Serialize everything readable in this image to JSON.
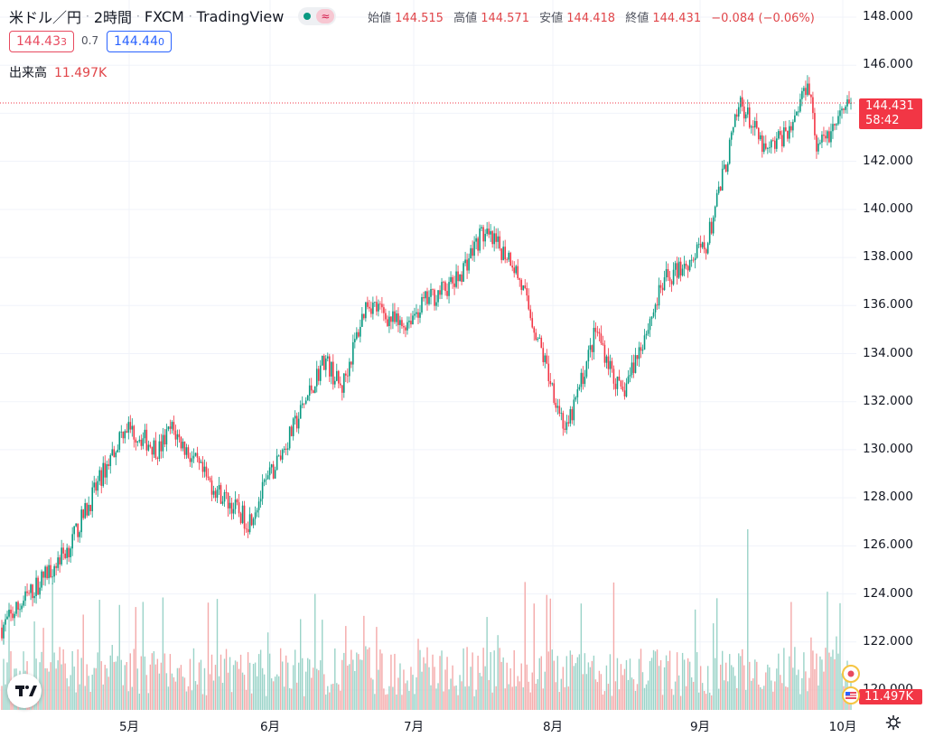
{
  "header": {
    "symbol": "米ドル／円",
    "interval": "2時間",
    "broker": "FXCM",
    "platform": "TradingView",
    "sep": "·",
    "market_icon": "≈"
  },
  "ohlc": {
    "open_label": "始値",
    "open": "144.515",
    "high_label": "高値",
    "high": "144.571",
    "low_label": "安値",
    "low": "144.418",
    "close_label": "終値",
    "close": "144.431",
    "change": "−0.084 (−0.06%)"
  },
  "trade": {
    "sell_main": "144.43",
    "sell_small": "3",
    "spread": "0.7",
    "buy_main": "144.44",
    "buy_small": "0"
  },
  "volume": {
    "label": "出来高",
    "value": "11.497K"
  },
  "price_label": {
    "price": "144.431",
    "countdown": "58:42"
  },
  "volume_label": "11.497K",
  "colors": {
    "up": "#089981",
    "down": "#f23645",
    "vol_up": "#9ad3c8",
    "vol_down": "#f4a9a9",
    "grid": "#f0f3fa"
  },
  "chart_data": {
    "type": "candlestick",
    "title": "米ドル／円",
    "y_ticks": [
      "148.000",
      "146.000",
      "144.000",
      "142.000",
      "140.000",
      "138.000",
      "136.000",
      "134.000",
      "132.000",
      "130.000",
      "128.000",
      "126.000",
      "124.000",
      "122.000",
      "120.000"
    ],
    "x_ticks": [
      "5月",
      "6月",
      "7月",
      "8月",
      "9月",
      "10月"
    ],
    "ylim": [
      120.0,
      148.0
    ],
    "grid": true,
    "last_price": 144.431,
    "price_path": [
      {
        "t": 0,
        "p": 122.6
      },
      {
        "t": 0.08,
        "p": 126.0
      },
      {
        "t": 0.115,
        "p": 128.7
      },
      {
        "t": 0.145,
        "p": 131.0
      },
      {
        "t": 0.185,
        "p": 130.0
      },
      {
        "t": 0.2,
        "p": 130.9
      },
      {
        "t": 0.24,
        "p": 128.8
      },
      {
        "t": 0.29,
        "p": 127.0
      },
      {
        "t": 0.345,
        "p": 131.0
      },
      {
        "t": 0.38,
        "p": 133.8
      },
      {
        "t": 0.4,
        "p": 132.5
      },
      {
        "t": 0.43,
        "p": 136.2
      },
      {
        "t": 0.47,
        "p": 135.1
      },
      {
        "t": 0.5,
        "p": 136.2
      },
      {
        "t": 0.535,
        "p": 137.0
      },
      {
        "t": 0.565,
        "p": 139.0
      },
      {
        "t": 0.6,
        "p": 138.0
      },
      {
        "t": 0.615,
        "p": 136.5
      },
      {
        "t": 0.665,
        "p": 130.7
      },
      {
        "t": 0.7,
        "p": 135.0
      },
      {
        "t": 0.73,
        "p": 132.2
      },
      {
        "t": 0.78,
        "p": 137.0
      },
      {
        "t": 0.83,
        "p": 138.5
      },
      {
        "t": 0.87,
        "p": 144.5
      },
      {
        "t": 0.9,
        "p": 142.3
      },
      {
        "t": 0.93,
        "p": 143.5
      },
      {
        "t": 0.95,
        "p": 145.5
      },
      {
        "t": 0.96,
        "p": 142.5
      },
      {
        "t": 1.0,
        "p": 144.43
      }
    ]
  }
}
